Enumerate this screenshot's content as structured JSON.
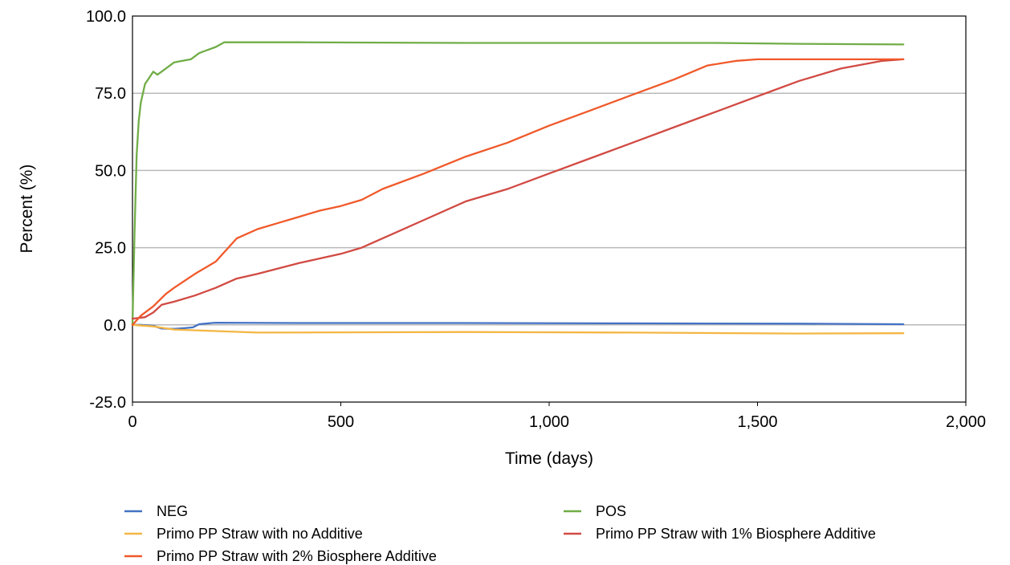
{
  "chart_data": {
    "type": "line",
    "title": "",
    "xlabel": "Time (days)",
    "ylabel": "Percent (%)",
    "xlim": [
      0,
      2000
    ],
    "ylim": [
      -25,
      100
    ],
    "x_ticks": [
      "0",
      "500",
      "1,000",
      "1,500",
      "2,000"
    ],
    "x_tick_values": [
      0,
      500,
      1000,
      1500,
      2000
    ],
    "y_ticks": [
      "-25.0",
      "0.0",
      "25.0",
      "50.0",
      "75.0",
      "100.0"
    ],
    "y_tick_values": [
      -25,
      0,
      25,
      50,
      75,
      100
    ],
    "grid": "horizontal",
    "legend_position": "bottom",
    "series": [
      {
        "name": "NEG",
        "color": "#4472c4",
        "x": [
          0,
          20,
          50,
          70,
          100,
          130,
          145,
          160,
          190,
          200,
          400,
          800,
          1200,
          1600,
          1850
        ],
        "y": [
          0,
          0,
          -0.3,
          -1.2,
          -1.3,
          -1.0,
          -0.8,
          0.2,
          0.6,
          0.7,
          0.6,
          0.6,
          0.5,
          0.4,
          0.2
        ]
      },
      {
        "name": "POS",
        "color": "#70ad47",
        "x": [
          0,
          5,
          10,
          15,
          20,
          30,
          40,
          50,
          60,
          80,
          100,
          120,
          140,
          160,
          180,
          200,
          220,
          400,
          800,
          1200,
          1400,
          1600,
          1850
        ],
        "y": [
          0,
          30,
          55,
          66,
          72,
          78,
          80,
          82,
          81,
          83,
          85,
          85.5,
          86,
          88,
          89,
          90,
          91.5,
          91.5,
          91.3,
          91.3,
          91.3,
          91,
          90.8
        ]
      },
      {
        "name": "Primo PP Straw with no Additive",
        "color": "#f4b643",
        "x": [
          0,
          50,
          100,
          200,
          300,
          800,
          1200,
          1600,
          1850
        ],
        "y": [
          0,
          -0.5,
          -1.5,
          -2.0,
          -2.5,
          -2.3,
          -2.5,
          -2.8,
          -2.7
        ]
      },
      {
        "name": "Primo PP Straw with 1% Biosphere Additive",
        "color": "#d14a43",
        "x": [
          0,
          30,
          50,
          70,
          100,
          150,
          200,
          250,
          300,
          400,
          500,
          550,
          600,
          700,
          800,
          900,
          1000,
          1100,
          1200,
          1300,
          1400,
          1500,
          1600,
          1700,
          1800,
          1850
        ],
        "y": [
          2,
          2.5,
          4,
          6.5,
          7.5,
          9.5,
          12,
          15,
          16.5,
          20,
          23,
          25,
          28,
          34,
          40,
          44,
          49,
          54,
          59,
          64,
          69,
          74,
          79,
          83,
          85.5,
          86
        ]
      },
      {
        "name": "Primo PP Straw with 2% Biosphere Additive",
        "color": "#f0592a",
        "x": [
          0,
          20,
          50,
          80,
          100,
          150,
          200,
          250,
          300,
          350,
          400,
          450,
          500,
          550,
          600,
          700,
          800,
          900,
          1000,
          1100,
          1200,
          1300,
          1380,
          1450,
          1500,
          1600,
          1700,
          1850
        ],
        "y": [
          0,
          3,
          6,
          10,
          12,
          16.5,
          20.5,
          28,
          31,
          33,
          35,
          37,
          38.5,
          40.5,
          44,
          49,
          54.5,
          59,
          64.5,
          69.5,
          74.5,
          79.5,
          84,
          85.5,
          86,
          86,
          86,
          86
        ]
      }
    ]
  }
}
